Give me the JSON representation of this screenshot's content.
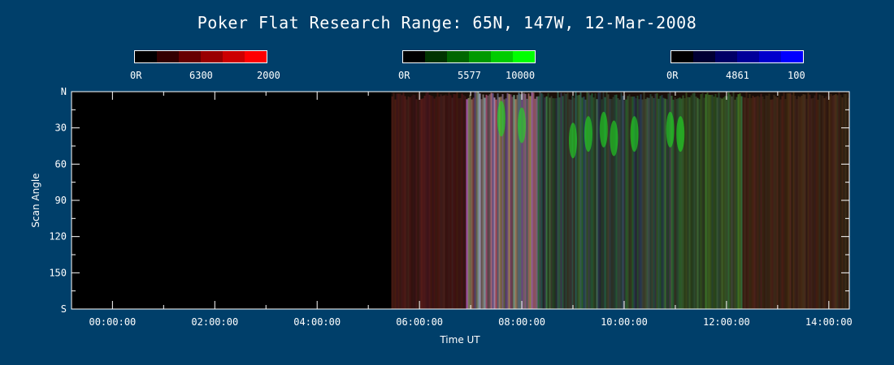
{
  "chart_data": {
    "type": "heatmap",
    "title": "Poker Flat Research Range: 65N, 147W, 12-Mar-2008",
    "xlabel": "Time UT",
    "ylabel": "Scan Angle",
    "x_ticks": [
      "00:00:00",
      "02:00:00",
      "04:00:00",
      "06:00:00",
      "08:00:00",
      "10:00:00",
      "12:00:00",
      "14:00:00"
    ],
    "x_tick_hours": [
      0,
      2,
      4,
      6,
      8,
      10,
      12,
      14
    ],
    "xlim_hours": [
      -0.8,
      14.4
    ],
    "y_ticks": [
      "N",
      "30",
      "60",
      "90",
      "120",
      "150",
      "S"
    ],
    "y_tick_values": [
      0,
      30,
      60,
      90,
      120,
      150,
      180
    ],
    "ylim": [
      0,
      180
    ],
    "data_start_hour": 5.45,
    "colorbars": [
      {
        "name": "6300",
        "min_label": "0R",
        "max_label": "2000",
        "colors": [
          "#000000",
          "#330000",
          "#660000",
          "#990000",
          "#cc0000",
          "#ff0000"
        ]
      },
      {
        "name": "5577",
        "min_label": "0R",
        "max_label": "10000",
        "colors": [
          "#000000",
          "#003300",
          "#006600",
          "#009900",
          "#00cc00",
          "#00ff00"
        ]
      },
      {
        "name": "4861",
        "min_label": "0R",
        "max_label": "100",
        "colors": [
          "#000000",
          "#000033",
          "#000066",
          "#000099",
          "#0000cc",
          "#0000ff"
        ]
      }
    ]
  },
  "colors": {
    "background": "#003f6a",
    "plot_background": "#000000",
    "axis": "#ffffff"
  }
}
